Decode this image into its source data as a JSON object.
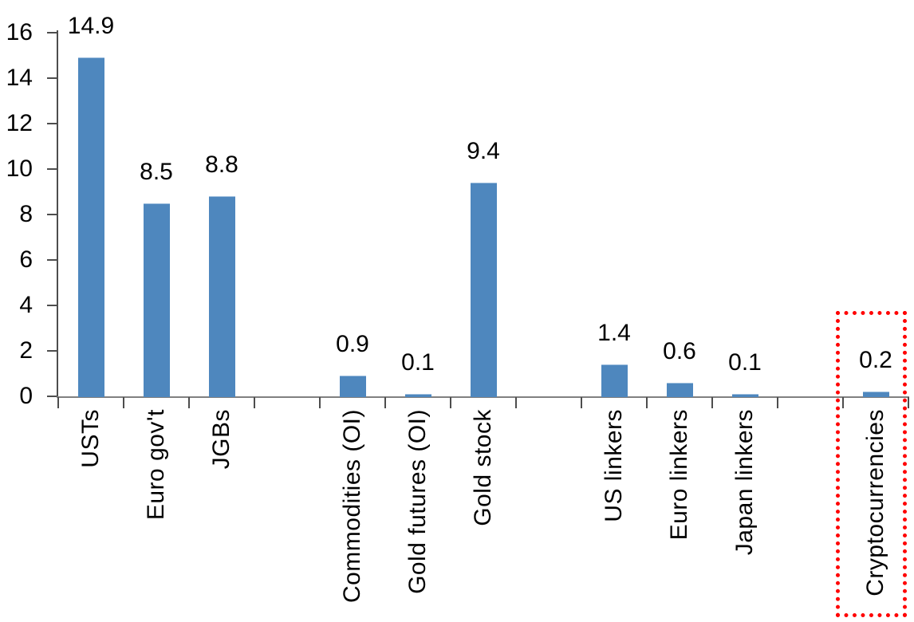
{
  "chart_data": {
    "type": "bar",
    "title": "",
    "xlabel": "",
    "ylabel": "",
    "categories": [
      "USTs",
      "Euro gov't",
      "JGBs",
      "",
      "Commodities (OI)",
      "Gold futures (OI)",
      "Gold stock",
      "",
      "US linkers",
      "Euro linkers",
      "Japan linkers",
      "",
      "Cryptocurrencies"
    ],
    "values": [
      14.9,
      8.5,
      8.8,
      null,
      0.9,
      0.1,
      9.4,
      null,
      1.4,
      0.6,
      0.1,
      null,
      0.2
    ],
    "data_labels": [
      "14.9",
      "8.5",
      "8.8",
      null,
      "0.9",
      "0.1",
      "9.4",
      null,
      "1.4",
      "0.6",
      "0.1",
      null,
      "0.2"
    ],
    "y_ticks": [
      "0",
      "2",
      "4",
      "6",
      "8",
      "10",
      "12",
      "14",
      "16"
    ],
    "ylim": [
      0,
      16
    ],
    "grid": false,
    "legend": false,
    "bar_color": "#4E87BE",
    "x_axis_color": "#808080",
    "tick_color": "#4d4d4d",
    "text_color": "#000000",
    "highlight_box": {
      "category": "Cryptocurrencies",
      "color": "#FF0000",
      "style": "dotted"
    }
  }
}
